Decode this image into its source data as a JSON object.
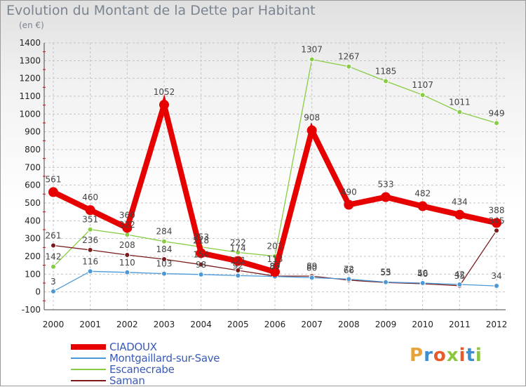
{
  "header": {
    "title": "Evolution du Montant de la Dette par Habitant",
    "unit": "(en €)"
  },
  "logo": {
    "text": "Proxiti",
    "colors": [
      "#e8a23a",
      "#3e8fcf",
      "#e85a2a",
      "#8cc63f",
      "#e85a2a",
      "#3e8fcf",
      "#8cc63f"
    ]
  },
  "chart_data": {
    "type": "line",
    "title": "Evolution du Montant de la Dette par Habitant",
    "ylabel": "(en €)",
    "xlabel": "",
    "x": [
      "2000",
      "2001",
      "2002",
      "2003",
      "2004",
      "2005",
      "2006",
      "2007",
      "2008",
      "2009",
      "2010",
      "2011",
      "2012"
    ],
    "ylim": [
      -100,
      1400
    ],
    "yticks": [
      -100,
      0,
      100,
      200,
      300,
      400,
      500,
      600,
      700,
      800,
      900,
      1000,
      1100,
      1200,
      1300,
      1400
    ],
    "grid": true,
    "legend_position": "bottom-left",
    "series": [
      {
        "name": "CIADOUX",
        "color": "#e60000",
        "values": [
          561,
          460,
          360,
          1052,
          218,
          174,
          113,
          908,
          490,
          533,
          482,
          434,
          388
        ],
        "labels": [
          "561",
          "460",
          "360",
          "1052",
          "218",
          "174",
          "113",
          "908",
          "490",
          "533",
          "482",
          "434",
          "388"
        ]
      },
      {
        "name": "Montgaillard-sur-Save",
        "color": "#4a98d8",
        "values": [
          3,
          116,
          110,
          103,
          98,
          92,
          87,
          80,
          72,
          55,
          50,
          42,
          34
        ],
        "labels": [
          "3",
          "116",
          "110",
          "103",
          "98",
          "92",
          "87",
          "80",
          "72",
          "55",
          "50",
          "42",
          "34"
        ]
      },
      {
        "name": "Escanecrabe",
        "color": "#88cc44",
        "values": [
          142,
          351,
          322,
          284,
          253,
          222,
          201,
          1307,
          1267,
          1185,
          1107,
          1011,
          949
        ],
        "labels": [
          "142",
          "351",
          "322",
          "284",
          "253",
          "222",
          "201",
          "1307",
          "1267",
          "1185",
          "1107",
          "1011",
          "949"
        ]
      },
      {
        "name": "Saman",
        "color": "#7a1a1a",
        "values": [
          261,
          236,
          208,
          184,
          154,
          121,
          89,
          89,
          66,
          53,
          46,
          35,
          345
        ],
        "labels": [
          "261",
          "236",
          "208",
          "184",
          "154",
          "121",
          "89",
          "89",
          "66",
          "53",
          "46",
          "35",
          "345"
        ]
      }
    ]
  }
}
